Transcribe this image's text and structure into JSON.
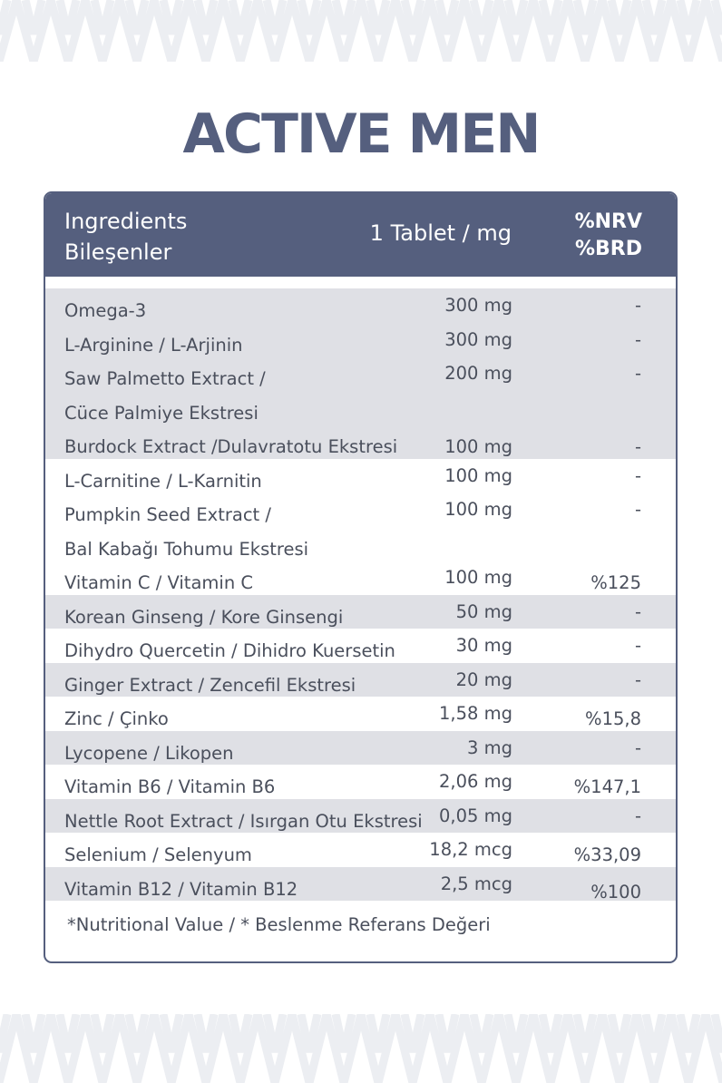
{
  "colors": {
    "accent": "#555f7e",
    "shade": "#dfe0e5",
    "text": "#4a4f5c",
    "pattern": "#eceef2"
  },
  "title": "ACTIVE MEN",
  "header": {
    "ingredients_line1": "Ingredients",
    "ingredients_line2": "Bileşenler",
    "amount": "1 Tablet / mg",
    "nrv_line1": "%NRV",
    "nrv_line2": "%BRD"
  },
  "rows": [
    {
      "name": "Omega-3",
      "amount": "300 mg",
      "nrv": "-"
    },
    {
      "name": "L-Arginine / L-Arjinin",
      "amount": "300 mg",
      "nrv": "-"
    },
    {
      "name": "Saw Palmetto Extract /",
      "name2": "Cüce Palmiye Ekstresi",
      "amount": "200 mg",
      "nrv": "-"
    },
    {
      "name": "Burdock Extract /Dulavratotu Ekstresi",
      "amount": "100 mg",
      "nrv": "-"
    },
    {
      "name": "L-Carnitine / L-Karnitin",
      "amount": "100 mg",
      "nrv": "-"
    },
    {
      "name": "Pumpkin Seed Extract /",
      "name2": "Bal Kabağı Tohumu Ekstresi",
      "amount": "100 mg",
      "nrv": "-"
    },
    {
      "name": "Vitamin C / Vitamin C",
      "amount": "100 mg",
      "nrv": "%125"
    },
    {
      "name": "Korean Ginseng / Kore Ginsengi",
      "amount": "50 mg",
      "nrv": "-"
    },
    {
      "name": "Dihydro Quercetin / Dihidro Kuersetin",
      "amount": "30 mg",
      "nrv": "-"
    },
    {
      "name": "Ginger Extract / Zencefil Ekstresi",
      "amount": "20 mg",
      "nrv": "-"
    },
    {
      "name": "Zinc / Çinko",
      "amount": "1,58 mg",
      "nrv": "%15,8"
    },
    {
      "name": "Lycopene / Likopen",
      "amount": "3 mg",
      "nrv": "-"
    },
    {
      "name": "Vitamin B6 / Vitamin B6",
      "amount": "2,06 mg",
      "nrv": "%147,1"
    },
    {
      "name": "Nettle Root Extract / Isırgan Otu Ekstresi",
      "amount": "0,05 mg",
      "nrv": "-"
    },
    {
      "name": "Selenium / Selenyum",
      "amount": "18,2 mcg",
      "nrv": "%33,09"
    },
    {
      "name": "Vitamin B12 / Vitamin B12",
      "amount": "2,5 mcg",
      "nrv": "%100"
    }
  ],
  "footnote": "*Nutritional Value / * Beslenme Referans Değeri"
}
